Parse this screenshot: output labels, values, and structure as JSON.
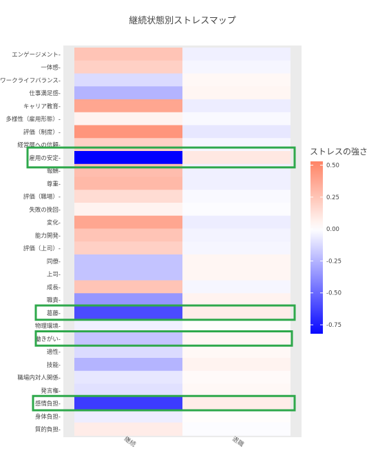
{
  "chart_data": {
    "type": "heatmap",
    "title": "継続状態別ストレスマップ",
    "x_categories": [
      "継続",
      "退職"
    ],
    "y_categories": [
      "エンゲージメント",
      "一体感",
      "ワークライフバランス",
      "仕事満足感",
      "キャリア教育",
      "多様性（雇用形態）",
      "評価（制度）",
      "経営層への信頼",
      "雇用の安定",
      "報酬",
      "尊重",
      "評価（職場）",
      "失敗の挽回",
      "変化",
      "能力開発",
      "評価（上司）",
      "同僚",
      "上司",
      "成長",
      "職責",
      "葛藤",
      "物理環境",
      "働きがい",
      "適性",
      "技能",
      "職場内対人関係",
      "発言権",
      "感情負担",
      "身体負担",
      "質的負担"
    ],
    "values": [
      [
        0.25,
        -0.05
      ],
      [
        0.2,
        -0.03
      ],
      [
        -0.12,
        0.03
      ],
      [
        -0.25,
        0.04
      ],
      [
        0.38,
        -0.06
      ],
      [
        0.05,
        -0.02
      ],
      [
        0.45,
        -0.08
      ],
      [
        0.2,
        -0.03
      ],
      [
        -0.9,
        0.1
      ],
      [
        0.28,
        -0.05
      ],
      [
        0.3,
        -0.05
      ],
      [
        0.15,
        -0.02
      ],
      [
        0.05,
        -0.01
      ],
      [
        0.38,
        -0.06
      ],
      [
        0.25,
        -0.04
      ],
      [
        0.2,
        -0.03
      ],
      [
        -0.2,
        0.04
      ],
      [
        -0.2,
        0.04
      ],
      [
        0.25,
        -0.03
      ],
      [
        -0.35,
        0.05
      ],
      [
        -0.6,
        0.08
      ],
      [
        -0.05,
        0.01
      ],
      [
        -0.2,
        0.04
      ],
      [
        -0.12,
        0.03
      ],
      [
        -0.25,
        0.05
      ],
      [
        -0.08,
        0.02
      ],
      [
        -0.1,
        0.03
      ],
      [
        -0.65,
        0.08
      ],
      [
        -0.06,
        0.01
      ],
      [
        0.08,
        -0.01
      ]
    ],
    "color_scale": {
      "low": "#0000ff",
      "mid": "#ffffff",
      "high": "#ff7e5f",
      "min": -0.85,
      "max": 0.55
    },
    "legend": {
      "title": "ストレスの強さ",
      "ticks": [
        0.5,
        0.25,
        0.0,
        -0.25,
        -0.5,
        -0.75
      ],
      "tick_labels": [
        "0.50",
        "0.25",
        "0.00",
        "-0.25",
        "-0.50",
        "-0.75"
      ],
      "placement": "right"
    },
    "highlighted_rows": [
      "雇用の安定",
      "葛藤",
      "働きがい",
      "感情負担"
    ],
    "highlight_color": "#2ea84b"
  }
}
